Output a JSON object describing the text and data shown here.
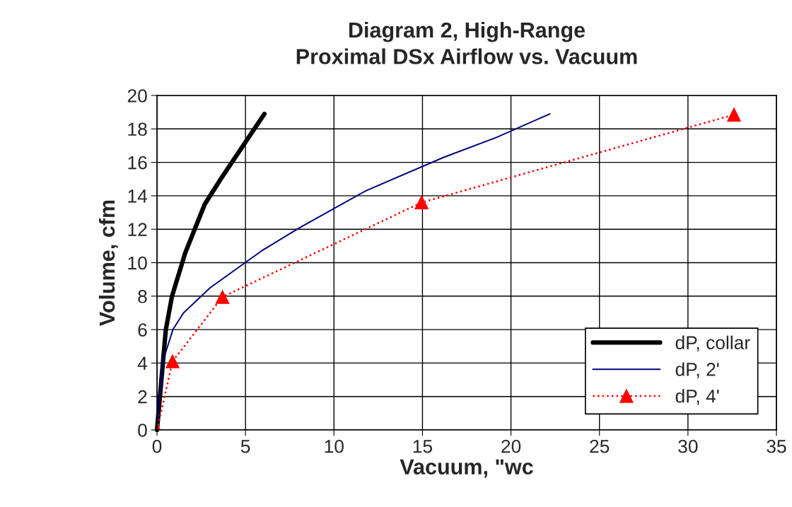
{
  "chart_data": {
    "type": "line",
    "title": "Diagram 2, High-Range\nProximal DSx Airflow vs. Vacuum",
    "xlabel": "Vacuum, \"wc",
    "ylabel": "Volume, cfm",
    "xlim": [
      0,
      35
    ],
    "xticks": [
      0,
      5,
      10,
      15,
      20,
      25,
      30,
      35
    ],
    "ylim": [
      0,
      20
    ],
    "yticks": [
      0,
      2,
      4,
      6,
      8,
      10,
      12,
      14,
      16,
      18,
      20
    ],
    "grid": true,
    "legend": "bottom right",
    "series": [
      {
        "name": "dP, collar",
        "color": "#000000",
        "line_style": "solid",
        "marker": "none",
        "x": [
          0,
          0.5,
          0.85,
          1.6,
          2.7,
          3.6,
          6.07
        ],
        "values": [
          0,
          6,
          8,
          10.6,
          13.5,
          15,
          18.9
        ]
      },
      {
        "name": "dP, 2'",
        "color": "#000080",
        "line_style": "solid",
        "marker": "none",
        "x": [
          0,
          0.3,
          0.9,
          1.5,
          3,
          5.9,
          8.07,
          11.8,
          16.2,
          19.2,
          22.2
        ],
        "values": [
          0,
          4,
          6,
          7,
          8.5,
          10.7,
          12.1,
          14.3,
          16.3,
          17.5,
          18.9
        ]
      },
      {
        "name": "dP, 4'",
        "color": "#ff0000",
        "line_style": "dotted",
        "marker": "triangle",
        "x": [
          0,
          0.88,
          3.7,
          14.95,
          32.6
        ],
        "values": [
          0,
          4.1,
          7.95,
          13.6,
          18.85
        ]
      }
    ]
  }
}
